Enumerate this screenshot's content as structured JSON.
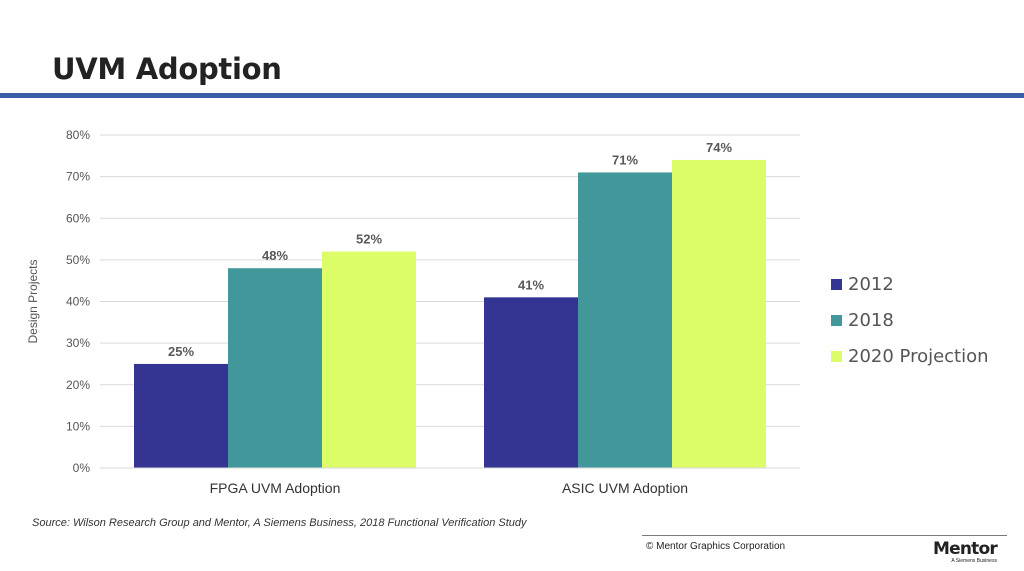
{
  "slide": {
    "title": "UVM Adoption",
    "source": "Source:  Wilson Research Group and Mentor, A Siemens Business, 2018 Functional Verification Study",
    "copyright": "© Mentor Graphics Corporation",
    "logo_name": "Mentor",
    "logo_subtitle": "A Siemens Business"
  },
  "colors": {
    "accent_rule": "#3b5ea8"
  },
  "chart_data": {
    "type": "bar",
    "title": "",
    "xlabel": "",
    "ylabel": "Design Projects",
    "categories": [
      "FPGA UVM Adoption",
      "ASIC UVM Adoption"
    ],
    "series": [
      {
        "name": "2012",
        "values": [
          25,
          41
        ],
        "color": "#343493"
      },
      {
        "name": "2018",
        "values": [
          48,
          71
        ],
        "color": "#42979a"
      },
      {
        "name": "2020 Projection",
        "values": [
          52,
          74
        ],
        "color": "#dcfc68"
      }
    ],
    "ylim": [
      0,
      80
    ],
    "yticks": [
      0,
      10,
      20,
      30,
      40,
      50,
      60,
      70,
      80
    ],
    "unit_suffix": "%",
    "grid": true,
    "legend": "right"
  }
}
